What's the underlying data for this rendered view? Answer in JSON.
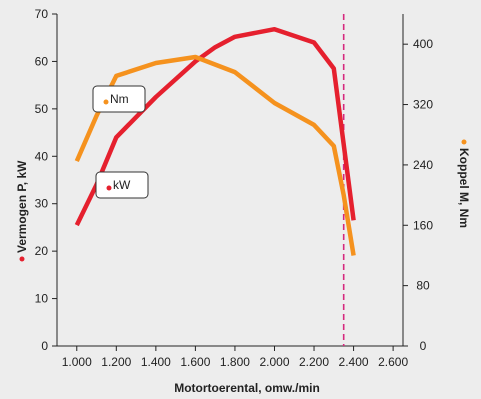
{
  "chart_data": {
    "type": "line",
    "xlabel": "Motortoerental, omw./min",
    "ylabel_left": "Vermogen P, kW",
    "ylabel_right": "Koppel M, Nm",
    "x_ticks": [
      1000,
      1200,
      1400,
      1600,
      1800,
      2000,
      2200,
      2400,
      2600
    ],
    "x_tick_labels": [
      "1.000",
      "1.200",
      "1.400",
      "1.600",
      "1.800",
      "2.000",
      "2.200",
      "2.400",
      "2.600"
    ],
    "xlim": [
      900,
      2650
    ],
    "ylim_left": [
      0,
      70
    ],
    "ylim_right": [
      0,
      440
    ],
    "y_ticks_left": [
      0,
      10,
      20,
      30,
      40,
      50,
      60,
      70
    ],
    "y_tick_labels_left": [
      "0",
      "10",
      "20",
      "30",
      "40",
      "50",
      "60",
      "70"
    ],
    "y_ticks_right": [
      0,
      80,
      160,
      240,
      320,
      400
    ],
    "y_tick_labels_right": [
      "0",
      "80",
      "160",
      "240",
      "320",
      "400"
    ],
    "grid": false,
    "reference_line": {
      "x": 2350,
      "color": "#d6287e",
      "style": "dashed"
    },
    "series": [
      {
        "name": "kW",
        "axis": "left",
        "color": "#e5202e",
        "x": [
          1000,
          1100,
          1200,
          1400,
          1600,
          1700,
          1800,
          2000,
          2200,
          2300,
          2400
        ],
        "values": [
          25.5,
          34,
          44,
          52.5,
          60,
          63,
          65.2,
          66.8,
          64,
          58.5,
          26.5
        ]
      },
      {
        "name": "Nm",
        "axis": "right",
        "color": "#f5921e",
        "x": [
          1000,
          1100,
          1200,
          1400,
          1600,
          1800,
          2000,
          2200,
          2300,
          2350,
          2400
        ],
        "values": [
          245,
          305,
          358,
          375,
          383,
          363,
          322,
          293,
          265,
          200,
          120
        ]
      }
    ],
    "legend": [
      {
        "label": "Nm",
        "color": "#f5921e"
      },
      {
        "label": "kW",
        "color": "#e5202e"
      }
    ]
  }
}
